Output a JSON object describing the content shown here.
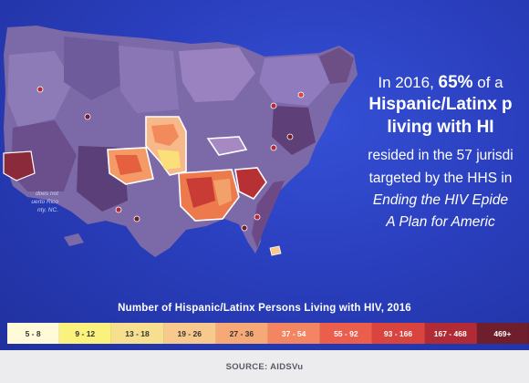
{
  "headline": {
    "line1_pre": "In 2016, ",
    "line1_bold": "65%",
    "line1_post": " of a",
    "line2": "Hispanic/Latinx p",
    "line3": "living with HI",
    "line4": "resided in the 57 jurisdi",
    "line5": "targeted by the HHS in",
    "line6": "Ending the HIV Epide",
    "line7": "A Plan for Americ"
  },
  "footnote": {
    "line1": "does not",
    "line2": "uerto Rico",
    "line3": "nty, NC."
  },
  "legend": {
    "title": "Number of Hispanic/Latinx Persons Living with HIV, 2016",
    "items": [
      {
        "label": "5 - 8",
        "color": "#fffbd9",
        "text": "#333"
      },
      {
        "label": "9 - 12",
        "color": "#fbf27e",
        "text": "#333"
      },
      {
        "label": "13 - 18",
        "color": "#f6e08f",
        "text": "#333"
      },
      {
        "label": "19 - 26",
        "color": "#f8c98c",
        "text": "#333"
      },
      {
        "label": "27 - 36",
        "color": "#f6a976",
        "text": "#333"
      },
      {
        "label": "37 - 54",
        "color": "#f48562",
        "text": "#ffffff"
      },
      {
        "label": "55 - 92",
        "color": "#ec5e4c",
        "text": "#ffffff"
      },
      {
        "label": "93 - 166",
        "color": "#d9443e",
        "text": "#ffffff"
      },
      {
        "label": "167 - 468",
        "color": "#b02b35",
        "text": "#ffffff"
      },
      {
        "label": "469+",
        "color": "#6f1e2b",
        "text": "#ffffff"
      }
    ]
  },
  "source": "SOURCE: AIDSVu",
  "colors": {
    "background": "#2a3fbe",
    "map_base": "#7c6aa8",
    "map_dark": "#5d3f7a",
    "highlight_outline": "#ffffff"
  }
}
